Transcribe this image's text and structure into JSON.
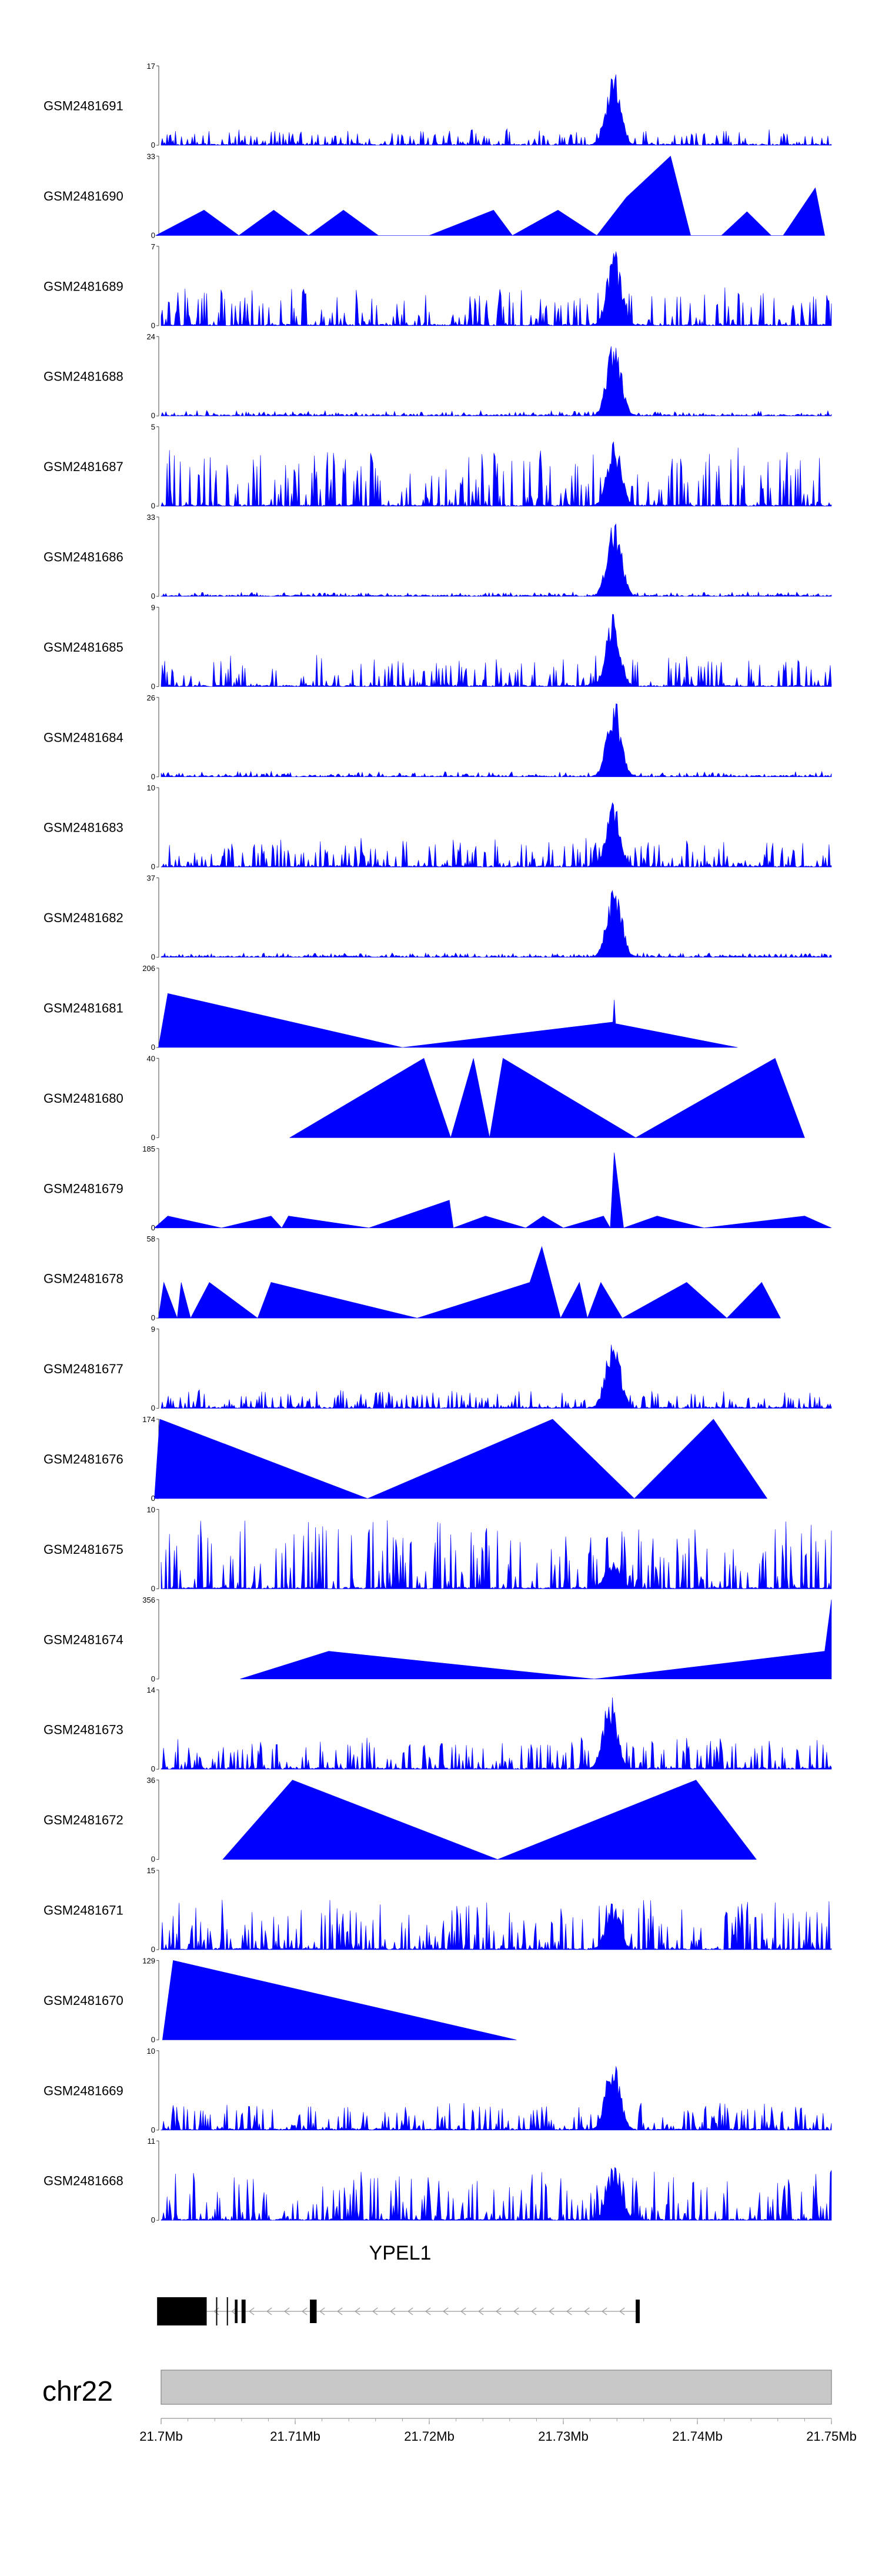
{
  "chart_data": {
    "type": "area",
    "title": "",
    "colors": {
      "signal": "#0000ff",
      "gene": "#000000",
      "ideogram": "#c8c8c8"
    },
    "x_axis": {
      "range": [
        21.7,
        21.75
      ],
      "unit": "Mb",
      "ticks": [
        21.7,
        21.71,
        21.72,
        21.73,
        21.74,
        21.75
      ],
      "tick_labels": [
        "21.7Mb",
        "21.71Mb",
        "21.72Mb",
        "21.73Mb",
        "21.74Mb",
        "21.75Mb"
      ]
    },
    "chromosome": "chr22",
    "gene": {
      "name": "YPEL1",
      "strand": "-",
      "start": 21.6997,
      "end": 21.7357,
      "exons": [
        [
          21.6997,
          21.7034
        ],
        [
          21.7055,
          21.7057
        ],
        [
          21.706,
          21.7063
        ],
        [
          21.7111,
          21.7116
        ],
        [
          21.7354,
          21.7357
        ]
      ]
    },
    "tracks": [
      {
        "name": "GSM2481691",
        "ymax": 17,
        "ymin": 0,
        "peak": [
          21.7337,
          1.0
        ],
        "style": "dense",
        "seed": 11,
        "noise": 0.18
      },
      {
        "name": "GSM2481690",
        "ymax": 33,
        "ymin": 0,
        "style": "sparse",
        "points": [
          [
            21.6996,
            0
          ],
          [
            21.7032,
            0.32
          ],
          [
            21.7058,
            0
          ],
          [
            21.7084,
            0.32
          ],
          [
            21.711,
            0
          ],
          [
            21.7136,
            0.32
          ],
          [
            21.7162,
            0
          ],
          [
            21.72,
            0
          ],
          [
            21.7248,
            0.32
          ],
          [
            21.7262,
            0
          ],
          [
            21.7296,
            0.32
          ],
          [
            21.7325,
            0
          ],
          [
            21.7347,
            0.48
          ],
          [
            21.738,
            1.0
          ],
          [
            21.7395,
            0
          ],
          [
            21.7418,
            0
          ],
          [
            21.7437,
            0.3
          ],
          [
            21.7455,
            0
          ],
          [
            21.7464,
            0
          ],
          [
            21.7488,
            0.6
          ],
          [
            21.7495,
            0
          ]
        ]
      },
      {
        "name": "GSM2481689",
        "ymax": 7,
        "ymin": 0,
        "peak": [
          21.7338,
          1.0
        ],
        "style": "dense",
        "seed": 23,
        "noise": 0.42
      },
      {
        "name": "GSM2481688",
        "ymax": 24,
        "ymin": 0,
        "peak": [
          21.7338,
          1.0
        ],
        "style": "dense",
        "seed": 31,
        "noise": 0.06
      },
      {
        "name": "GSM2481687",
        "ymax": 5,
        "ymin": 0,
        "peak": [
          21.7338,
          0.9
        ],
        "style": "dense",
        "seed": 37,
        "noise": 0.68
      },
      {
        "name": "GSM2481686",
        "ymax": 33,
        "ymin": 0,
        "peak": [
          21.7338,
          1.0
        ],
        "style": "dense",
        "seed": 41,
        "noise": 0.05
      },
      {
        "name": "GSM2481685",
        "ymax": 9,
        "ymin": 0,
        "peak": [
          21.7337,
          0.95
        ],
        "style": "dense",
        "seed": 43,
        "noise": 0.35
      },
      {
        "name": "GSM2481684",
        "ymax": 26,
        "ymin": 0,
        "peak": [
          21.7338,
          1.0
        ],
        "style": "dense",
        "seed": 47,
        "noise": 0.06
      },
      {
        "name": "GSM2481683",
        "ymax": 10,
        "ymin": 0,
        "peak": [
          21.7337,
          0.85
        ],
        "style": "dense",
        "seed": 53,
        "noise": 0.32
      },
      {
        "name": "GSM2481682",
        "ymax": 37,
        "ymin": 0,
        "peak": [
          21.7338,
          1.0
        ],
        "style": "dense",
        "seed": 59,
        "noise": 0.05
      },
      {
        "name": "GSM2481681",
        "ymax": 206,
        "ymin": 0,
        "style": "sparse",
        "points": [
          [
            21.6998,
            0
          ],
          [
            21.7005,
            0.68
          ],
          [
            21.718,
            0
          ],
          [
            21.7337,
            0.32
          ],
          [
            21.7338,
            0.6
          ],
          [
            21.7339,
            0.3
          ],
          [
            21.743,
            0
          ]
        ]
      },
      {
        "name": "GSM2481680",
        "ymax": 40,
        "ymin": 0,
        "style": "sparse",
        "points": [
          [
            21.7096,
            0
          ],
          [
            21.7196,
            1.0
          ],
          [
            21.7216,
            0
          ],
          [
            21.7233,
            1.0
          ],
          [
            21.7245,
            0
          ],
          [
            21.7255,
            1.0
          ],
          [
            21.7354,
            0
          ],
          [
            21.7458,
            1.0
          ],
          [
            21.748,
            0
          ]
        ]
      },
      {
        "name": "GSM2481679",
        "ymax": 185,
        "ymin": 0,
        "style": "sparse",
        "points": [
          [
            21.6995,
            0
          ],
          [
            21.7005,
            0.15
          ],
          [
            21.7045,
            0
          ],
          [
            21.7082,
            0.15
          ],
          [
            21.709,
            0
          ],
          [
            21.7095,
            0.15
          ],
          [
            21.7155,
            0
          ],
          [
            21.7215,
            0.35
          ],
          [
            21.7218,
            0
          ],
          [
            21.7242,
            0.15
          ],
          [
            21.7272,
            0
          ],
          [
            21.7285,
            0.15
          ],
          [
            21.73,
            0
          ],
          [
            21.733,
            0.15
          ],
          [
            21.7335,
            0
          ],
          [
            21.7338,
            0.95
          ],
          [
            21.7345,
            0
          ],
          [
            21.737,
            0.15
          ],
          [
            21.7405,
            0
          ],
          [
            21.748,
            0.15
          ],
          [
            21.75,
            0
          ]
        ]
      },
      {
        "name": "GSM2481678",
        "ymax": 58,
        "ymin": 0,
        "style": "sparse",
        "points": [
          [
            21.6998,
            0
          ],
          [
            21.7002,
            0.45
          ],
          [
            21.7012,
            0
          ],
          [
            21.7015,
            0.45
          ],
          [
            21.7022,
            0
          ],
          [
            21.7036,
            0.45
          ],
          [
            21.7072,
            0
          ],
          [
            21.7082,
            0.45
          ],
          [
            21.7191,
            0
          ],
          [
            21.7275,
            0.45
          ],
          [
            21.7284,
            0.9
          ],
          [
            21.7298,
            0
          ],
          [
            21.7312,
            0.45
          ],
          [
            21.7318,
            0
          ],
          [
            21.7328,
            0.45
          ],
          [
            21.7344,
            0
          ],
          [
            21.7392,
            0.45
          ],
          [
            21.7422,
            0
          ],
          [
            21.7448,
            0.45
          ],
          [
            21.7462,
            0
          ]
        ]
      },
      {
        "name": "GSM2481677",
        "ymax": 9,
        "ymin": 0,
        "peak": [
          21.7337,
          1.0
        ],
        "style": "dense",
        "seed": 61,
        "noise": 0.22
      },
      {
        "name": "GSM2481676",
        "ymax": 174,
        "ymin": 0,
        "style": "sparse",
        "points": [
          [
            21.6995,
            0
          ],
          [
            21.6999,
            1.0
          ],
          [
            21.7154,
            0
          ],
          [
            21.7292,
            1.0
          ],
          [
            21.7353,
            0
          ],
          [
            21.7412,
            1.0
          ],
          [
            21.7452,
            0
          ]
        ]
      },
      {
        "name": "GSM2481675",
        "ymax": 10,
        "ymin": 0,
        "peak": [
          21.7337,
          0.4
        ],
        "style": "dense",
        "seed": 67,
        "noise": 0.75
      },
      {
        "name": "GSM2481674",
        "ymax": 356,
        "ymin": 0,
        "style": "sparse",
        "points": [
          [
            21.7059,
            0
          ],
          [
            21.7125,
            0.35
          ],
          [
            21.7323,
            0
          ],
          [
            21.7495,
            0.35
          ],
          [
            21.75,
            1.0
          ],
          [
            21.75,
            0
          ]
        ]
      },
      {
        "name": "GSM2481673",
        "ymax": 14,
        "ymin": 0,
        "peak": [
          21.7335,
          0.95
        ],
        "style": "dense",
        "seed": 71,
        "noise": 0.35
      },
      {
        "name": "GSM2481672",
        "ymax": 36,
        "ymin": 0,
        "style": "sparse",
        "points": [
          [
            21.7046,
            0
          ],
          [
            21.7098,
            1.0
          ],
          [
            21.7251,
            0
          ],
          [
            21.7399,
            1.0
          ],
          [
            21.7444,
            0
          ]
        ]
      },
      {
        "name": "GSM2481671",
        "ymax": 15,
        "ymin": 0,
        "peak": [
          21.7337,
          0.6
        ],
        "style": "dense",
        "seed": 73,
        "noise": 0.55
      },
      {
        "name": "GSM2481670",
        "ymax": 129,
        "ymin": 0,
        "style": "sparse",
        "points": [
          [
            21.7001,
            0
          ],
          [
            21.7009,
            1.0
          ],
          [
            21.7265,
            0
          ]
        ]
      },
      {
        "name": "GSM2481669",
        "ymax": 10,
        "ymin": 0,
        "peak": [
          21.7337,
          1.0
        ],
        "style": "dense",
        "seed": 79,
        "noise": 0.3
      },
      {
        "name": "GSM2481668",
        "ymax": 11,
        "ymin": 0,
        "peak": [
          21.7338,
          0.8
        ],
        "style": "dense",
        "seed": 83,
        "noise": 0.55
      }
    ]
  }
}
